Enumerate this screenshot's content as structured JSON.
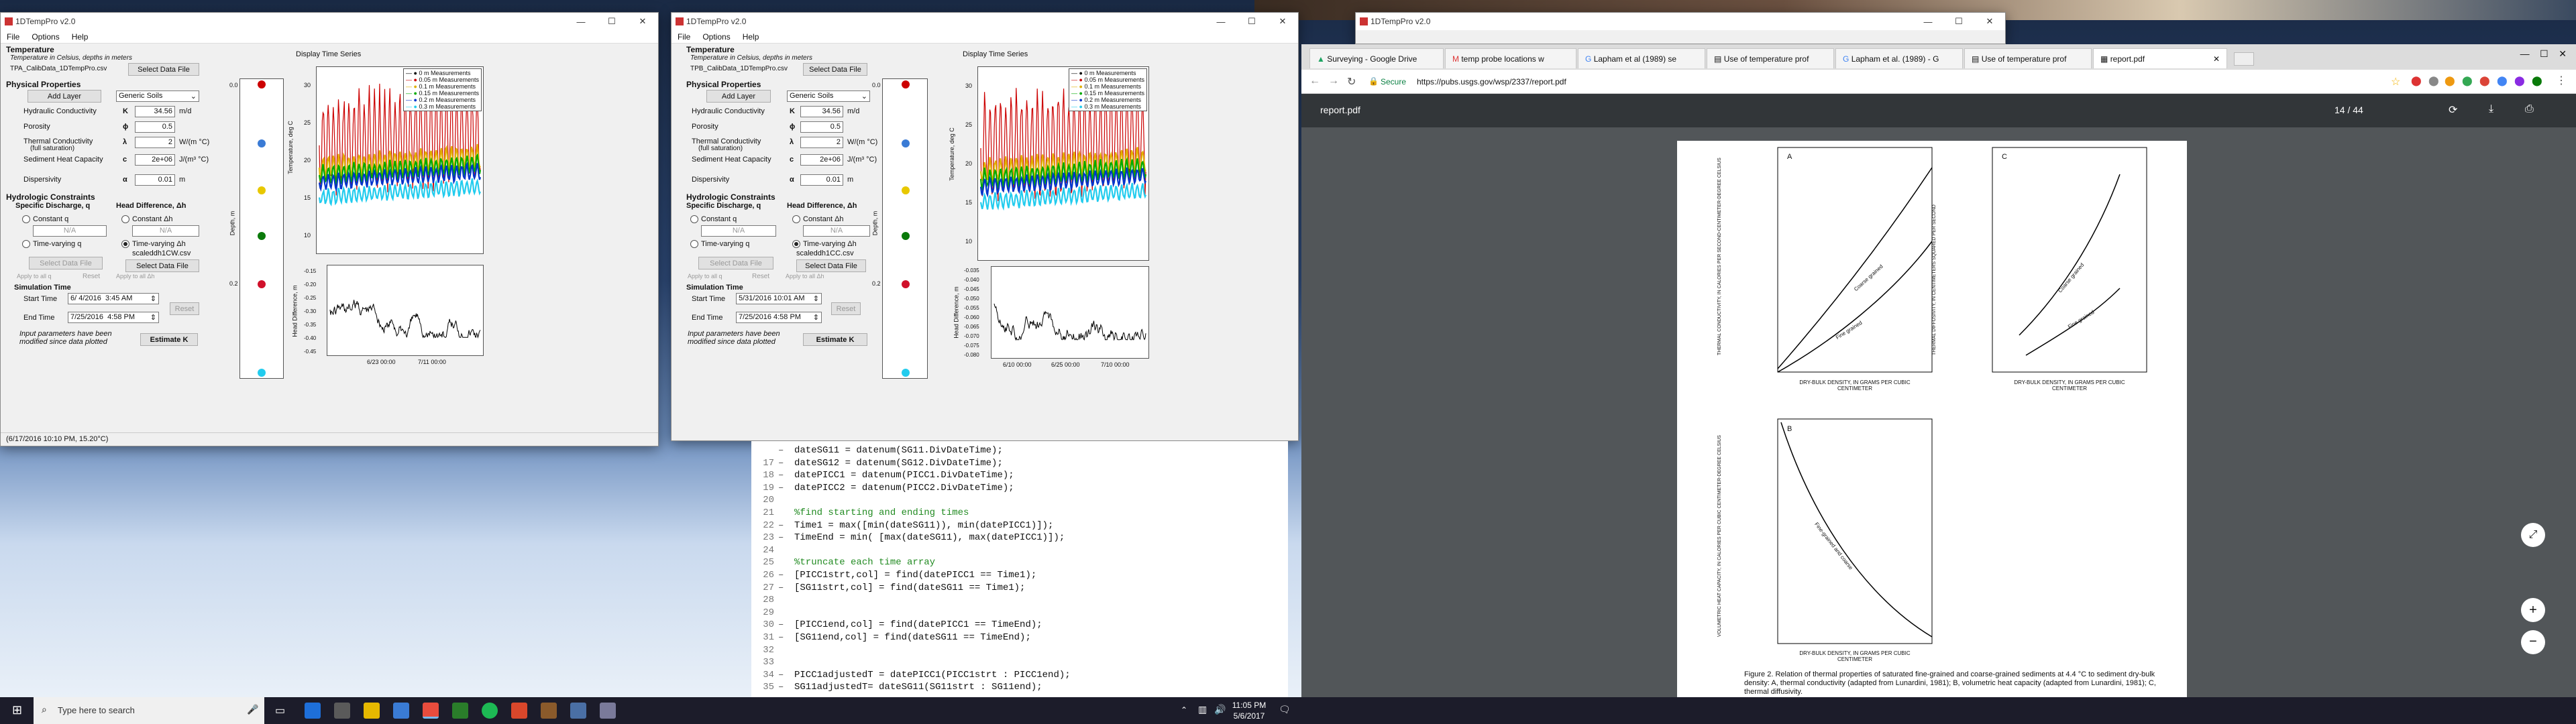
{
  "app": {
    "title": "1DTempPro v2.0",
    "menu": [
      "File",
      "Options",
      "Help"
    ],
    "temperature": {
      "heading": "Temperature",
      "note": "Temperature in Celsius, depths in meters",
      "select_file": "Select Data File"
    },
    "physical": {
      "heading": "Physical Properties",
      "add_layer": "Add Layer",
      "material": "Generic Soils",
      "hydraulic_label": "Hydraulic Conductivity",
      "hydraulic_sym": "K",
      "hydraulic_unit": "m/d",
      "porosity_label": "Porosity",
      "porosity_sym": "ϕ",
      "porosity": "0.5",
      "thermal_label": "Thermal Conductivity",
      "thermal_sub": "(full saturation)",
      "thermal_sym": "λ",
      "thermal": "2",
      "thermal_unit": "W/(m °C)",
      "heat_label": "Sediment Heat Capacity",
      "heat_sym": "c",
      "heat": "2e+06",
      "heat_unit": "J/(m³ °C)",
      "dispersivity_label": "Dispersivity",
      "dispersivity_sym": "α",
      "dispersivity": "0.01",
      "dispersivity_unit": "m"
    },
    "hydro": {
      "heading": "Hydrologic Constraints",
      "discharge": "Specific Discharge, q",
      "head": "Head Difference, Δh",
      "const_q": "Constant q",
      "const_h": "Constant Δh",
      "na": "N/A",
      "tv_q": "Time-varying q",
      "tv_h": "Time-varying Δh",
      "select_file": "Select Data File",
      "reset": "Reset",
      "apply_label": "Apply to all q",
      "apply_label2": "Apply to all Δh"
    },
    "sim": {
      "heading": "Simulation Time",
      "start_label": "Start Time",
      "end_label": "End Time",
      "reset": "Reset"
    },
    "warn": "Input parameters have been modified since data plotted",
    "estimate": "Estimate K",
    "display_label": "Display Time Series",
    "depth_label": "Depth, m",
    "temp_axis": "Temperature, deg C",
    "head_axis": "Head Difference, m",
    "legend": [
      {
        "label": "0 m Measurements",
        "color": "#000000"
      },
      {
        "label": "0.05 m Measurements",
        "color": "#cc0000"
      },
      {
        "label": "0.1 m Measurements",
        "color": "#e0b000"
      },
      {
        "label": "0.15 m Measurements",
        "color": "#00aa00"
      },
      {
        "label": "0.2 m Measurements",
        "color": "#0033cc"
      },
      {
        "label": "0.3 m Measurements",
        "color": "#22ccee"
      }
    ],
    "depth_ticks": [
      "0.0",
      "0.2"
    ],
    "temp_ticks_1": [
      "30",
      "25",
      "20",
      "15",
      "10"
    ],
    "temp_ticks_2": [
      "30",
      "25",
      "20",
      "15",
      "10"
    ],
    "head_ticks_1": [
      "-0.15",
      "-0.20",
      "-0.25",
      "-0.30",
      "-0.35",
      "-0.40",
      "-0.45"
    ],
    "head_ticks_2": [
      "-0.035",
      "-0.040",
      "-0.045",
      "-0.050",
      "-0.055",
      "-0.060",
      "-0.065",
      "-0.070",
      "-0.075",
      "-0.080"
    ],
    "x_ticks_1": [
      "6/23 00:00",
      "7/11 00:00"
    ],
    "x_ticks_2": [
      "6/10 00:00",
      "6/25 00:00",
      "7/10 00:00"
    ]
  },
  "win1": {
    "temp_file": "TPA_CalibData_1DTempPro.csv",
    "hydraulic": "34.56",
    "head_file": "scaleddh1CW.csv",
    "start_date": "6/ 4/2016",
    "start_time": "3:45 AM",
    "end_date": "7/25/2016",
    "end_time": "4:58 PM",
    "status": "(6/17/2016 10:10 PM, 15.20°C)"
  },
  "win2": {
    "temp_file": "TPB_CalibData_1DTempPro.csv",
    "hydraulic": "34.56",
    "head_file": "scaleddh1CC.csv",
    "start_date": "5/31/2016",
    "start_time": "10:01 AM",
    "end_date": "7/25/2016",
    "end_time": "4:58 PM"
  },
  "win3": {
    "title": "1DTempPro v2.0"
  },
  "editor": {
    "lines": [
      {
        "n": "",
        "t": "dateSG11 = datenum(SG11.DivDateTime);",
        "type": "code"
      },
      {
        "n": "17",
        "t": "dateSG12 = datenum(SG12.DivDateTime);",
        "type": "code"
      },
      {
        "n": "18",
        "t": "datePICC1 = datenum(PICC1.DivDateTime);",
        "type": "code"
      },
      {
        "n": "19",
        "t": "datePICC2 = datenum(PICC2.DivDateTime);",
        "type": "code"
      },
      {
        "n": "20",
        "t": "",
        "type": "blank"
      },
      {
        "n": "21",
        "t": "%find starting and ending times",
        "type": "comment"
      },
      {
        "n": "22",
        "t": "Time1 = max([min(dateSG11)), min(datePICC1)]);",
        "type": "code"
      },
      {
        "n": "23",
        "t": "TimeEnd = min( [max(dateSG11), max(datePICC1)]);",
        "type": "code"
      },
      {
        "n": "24",
        "t": "",
        "type": "blank"
      },
      {
        "n": "25",
        "t": "%truncate each time array",
        "type": "comment"
      },
      {
        "n": "26",
        "t": "[PICC1strt,col] = find(datePICC1 == Time1);",
        "type": "code"
      },
      {
        "n": "27",
        "t": "[SG11strt,col] = find(dateSG11 == Time1);",
        "type": "code"
      },
      {
        "n": "28",
        "t": "",
        "type": "blank"
      },
      {
        "n": "29",
        "t": "",
        "type": "blank"
      },
      {
        "n": "30",
        "t": "[PICC1end,col] = find(datePICC1 == TimeEnd);",
        "type": "code"
      },
      {
        "n": "31",
        "t": "[SG11end,col] = find(dateSG11 == TimeEnd);",
        "type": "code"
      },
      {
        "n": "32",
        "t": "",
        "type": "blank"
      },
      {
        "n": "33",
        "t": "",
        "type": "blank"
      },
      {
        "n": "34",
        "t": "PICC1adjustedT = datePICC1(PICC1strt : PICC1end);",
        "type": "code"
      },
      {
        "n": "35",
        "t": "SG11adjustedT= dateSG11(SG11strt : SG11end);",
        "type": "code"
      }
    ]
  },
  "browser": {
    "tabs": [
      "Surveying - Google Drive",
      "temp probe locations w",
      "Lapham et al (1989) se",
      "Use of temperature prof",
      "Lapham et al. (1989) - G",
      "Use of temperature prof",
      "report.pdf"
    ],
    "secure": "Secure",
    "url": "https://pubs.usgs.gov/wsp/2337/report.pdf",
    "pdf_title": "report.pdf",
    "page_current": "14",
    "page_sep": "/",
    "page_total": "44",
    "caption": "Figure 2. Relation of thermal properties of saturated fine-grained and coarse-grained sediments at 4.4 °C to sediment dry-bulk density: A, thermal conductivity (adapted from Lunardini, 1981); B, volumetric heat capacity (adapted from Lunardini, 1981); C, thermal diffusivity.",
    "figA_ylabel": "THERMAL CONDUCTIVITY, IN CALORIES PER SECOND-CENTIMETER-DEGREE CELSIUS",
    "figC_ylabel": "THERMAL DIFFUSIVITY, IN CENTIMETERS SQUARED PER SECOND",
    "figB_ylabel": "VOLUMETRIC HEAT CAPACITY, IN CALORIES PER CUBIC CENTIMETER-DEGREE CELSIUS",
    "xlabel": "DRY-BULK DENSITY, IN GRAMS PER CUBIC CENTIMETER",
    "figA": "A",
    "figB": "B",
    "figC": "C",
    "coarse": "Coarse grained",
    "fine": "Fine grained",
    "fine_coarse": "Fine-grained and coarse"
  },
  "taskbar": {
    "search_placeholder": "Type here to search",
    "time": "11:05 PM",
    "date": "5/6/2017"
  }
}
